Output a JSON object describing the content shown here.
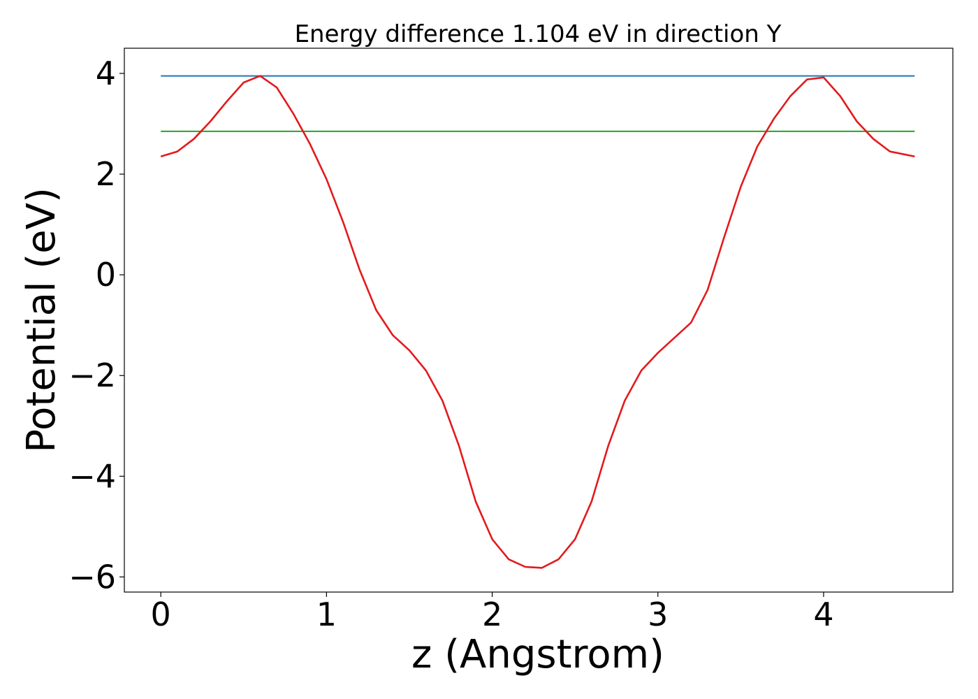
{
  "chart_data": {
    "type": "line",
    "title": "Energy difference 1.104 eV in direction Y",
    "xlabel": "z (Angstrom)",
    "ylabel": "Potential (eV)",
    "xlim": [
      -0.22,
      4.78
    ],
    "ylim": [
      -6.3,
      4.5
    ],
    "x_ticks": [
      0,
      1,
      2,
      3,
      4
    ],
    "x_tick_labels": [
      "0",
      "1",
      "2",
      "3",
      "4"
    ],
    "y_ticks": [
      -6,
      -4,
      -2,
      0,
      2,
      4
    ],
    "y_tick_labels": [
      "−6",
      "−4",
      "−2",
      "0",
      "2",
      "4"
    ],
    "grid": false,
    "legend": "none",
    "series": [
      {
        "color": "#1f77b4",
        "x": [
          0,
          4.55
        ],
        "y": [
          3.95,
          3.95
        ]
      },
      {
        "color": "#2ca02c",
        "x": [
          0,
          4.55
        ],
        "y": [
          2.85,
          2.85
        ]
      },
      {
        "color": "#e31a1c",
        "x": [
          0,
          0.1,
          0.2,
          0.3,
          0.4,
          0.5,
          0.6,
          0.7,
          0.8,
          0.9,
          1.0,
          1.1,
          1.2,
          1.3,
          1.4,
          1.5,
          1.6,
          1.7,
          1.8,
          1.9,
          2.0,
          2.1,
          2.2,
          2.3,
          2.4,
          2.5,
          2.6,
          2.7,
          2.8,
          2.9,
          3.0,
          3.1,
          3.2,
          3.3,
          3.4,
          3.5,
          3.6,
          3.7,
          3.8,
          3.9,
          4.0,
          4.1,
          4.2,
          4.3,
          4.4,
          4.55
        ],
        "y": [
          2.35,
          2.45,
          2.7,
          3.05,
          3.45,
          3.82,
          3.95,
          3.72,
          3.2,
          2.6,
          1.9,
          1.05,
          0.1,
          -0.7,
          -1.2,
          -1.5,
          -1.9,
          -2.5,
          -3.4,
          -4.5,
          -5.25,
          -5.65,
          -5.8,
          -5.82,
          -5.65,
          -5.25,
          -4.5,
          -3.4,
          -2.5,
          -1.9,
          -1.55,
          -1.25,
          -0.95,
          -0.3,
          0.75,
          1.75,
          2.55,
          3.1,
          3.55,
          3.88,
          3.92,
          3.55,
          3.05,
          2.7,
          2.45,
          2.35
        ]
      }
    ]
  }
}
